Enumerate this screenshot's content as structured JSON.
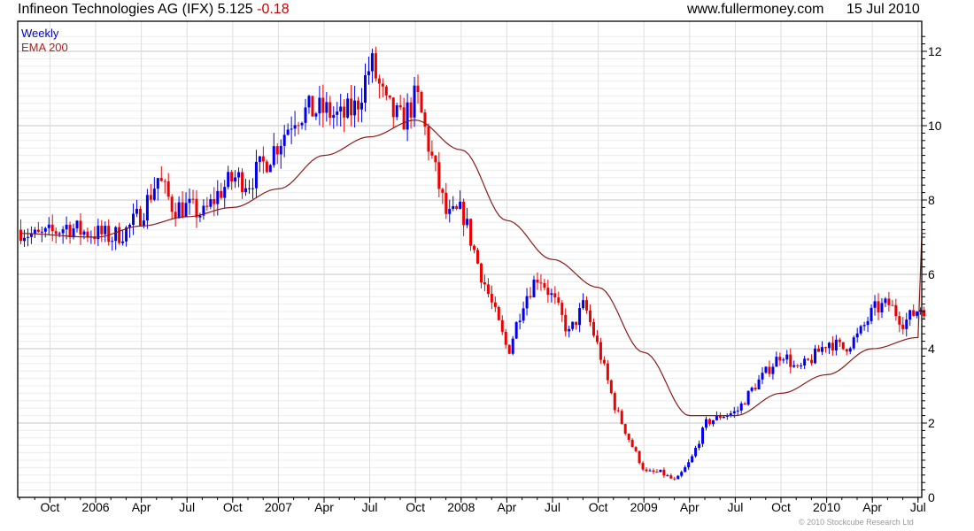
{
  "header": {
    "name": "Infineon Technologies AG (IFX)",
    "price": "5.125",
    "change": "-0.18",
    "site": "www.fullermoney.com",
    "date": "15 Jul 2010"
  },
  "footer": {
    "copyright": "© 2010 Stockcube Research Ltd"
  },
  "colors": {
    "up": "#0000ee",
    "down": "#ee0000",
    "ema": "#8b1a1a",
    "legend_weekly": "#0000cc",
    "legend_ema": "#aa2222"
  },
  "chart_data": {
    "type": "candlestick",
    "title": "Infineon Technologies AG (IFX)",
    "legend": [
      "Weekly",
      "EMA 200"
    ],
    "legend_position": "top-left",
    "y_axis_side": "right",
    "ylim": [
      0,
      12.5
    ],
    "yticks": [
      "0",
      "2",
      "4",
      "6",
      "8",
      "10",
      "12"
    ],
    "ytick_values": [
      0,
      2,
      4,
      6,
      8,
      10,
      12
    ],
    "xticks": [
      "Oct",
      "2006",
      "Apr",
      "Jul",
      "Oct",
      "2007",
      "Apr",
      "Jul",
      "Oct",
      "2008",
      "Apr",
      "Jul",
      "Oct",
      "2009",
      "Apr",
      "Jul",
      "Oct",
      "2010",
      "Apr",
      "Jul"
    ],
    "x_start": "2005-08",
    "x_end": "2010-07-15",
    "monthly_close": {
      "months": [
        "2005-08",
        "2005-09",
        "2005-10",
        "2005-11",
        "2005-12",
        "2006-01",
        "2006-02",
        "2006-03",
        "2006-04",
        "2006-05",
        "2006-06",
        "2006-07",
        "2006-08",
        "2006-09",
        "2006-10",
        "2006-11",
        "2006-12",
        "2007-01",
        "2007-02",
        "2007-03",
        "2007-04",
        "2007-05",
        "2007-06",
        "2007-07",
        "2007-08",
        "2007-09",
        "2007-10",
        "2007-11",
        "2007-12",
        "2008-01",
        "2008-02",
        "2008-03",
        "2008-04",
        "2008-05",
        "2008-06",
        "2008-07",
        "2008-08",
        "2008-09",
        "2008-10",
        "2008-11",
        "2008-12",
        "2009-01",
        "2009-02",
        "2009-03",
        "2009-04",
        "2009-05",
        "2009-06",
        "2009-07",
        "2009-08",
        "2009-09",
        "2009-10",
        "2009-11",
        "2009-12",
        "2010-01",
        "2010-02",
        "2010-03",
        "2010-04",
        "2010-05",
        "2010-06",
        "2010-07"
      ],
      "values": [
        7.2,
        7.0,
        7.1,
        7.3,
        7.15,
        7.1,
        7.0,
        7.2,
        7.7,
        8.6,
        7.8,
        7.8,
        7.6,
        8.2,
        8.6,
        8.5,
        9.0,
        9.6,
        10.3,
        10.4,
        10.4,
        10.2,
        10.5,
        11.7,
        10.5,
        10.1,
        10.8,
        9.1,
        7.5,
        7.7,
        6.3,
        5.1,
        3.9,
        5.3,
        6.0,
        5.3,
        4.4,
        5.2,
        3.9,
        2.45,
        1.5,
        0.67,
        0.67,
        0.43,
        1.0,
        2.0,
        2.2,
        2.3,
        2.9,
        3.4,
        3.9,
        3.4,
        3.75,
        4.2,
        4.0,
        4.35,
        5.05,
        5.2,
        4.7,
        5.1
      ]
    },
    "ema200": {
      "points": [
        "2005-08",
        "2006-01",
        "2006-04",
        "2006-07",
        "2006-10",
        "2007-01",
        "2007-04",
        "2007-07",
        "2007-10",
        "2008-01",
        "2008-04",
        "2008-07",
        "2008-10",
        "2009-01",
        "2009-04",
        "2009-07",
        "2009-10",
        "2010-01",
        "2010-04",
        "2010-07"
      ],
      "values": [
        7.1,
        7.0,
        7.3,
        7.55,
        7.8,
        8.3,
        9.2,
        9.7,
        10.15,
        9.35,
        7.45,
        6.4,
        5.65,
        3.9,
        2.2,
        2.2,
        2.8,
        3.3,
        4.0,
        4.3
      ]
    }
  }
}
